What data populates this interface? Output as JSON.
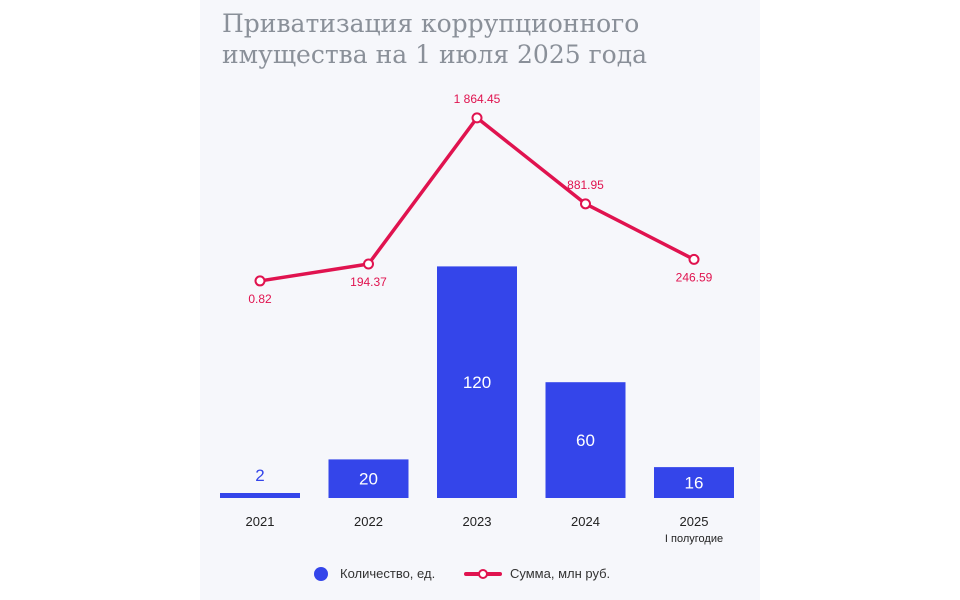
{
  "chart_data": {
    "type": "bar+line",
    "title": "Приватизация коррупционного\nимущества на 1 июля 2025 года",
    "categories": [
      "2021",
      "2022",
      "2023",
      "2024",
      "2025"
    ],
    "category_sublabels": [
      "",
      "",
      "",
      "",
      "I полугодие"
    ],
    "series": [
      {
        "name": "Количество, ед.",
        "type": "bar",
        "color": "#3445ea",
        "values": [
          2,
          20,
          120,
          60,
          16
        ],
        "labels": [
          "2",
          "20",
          "120",
          "60",
          "16"
        ]
      },
      {
        "name": "Сумма, млн руб.",
        "type": "line",
        "color": "#e0134f",
        "values": [
          0.82,
          194.37,
          1864.45,
          881.95,
          246.59
        ],
        "labels": [
          "0.82",
          "194.37",
          "1 864.45",
          "881.95",
          "246.59"
        ]
      }
    ],
    "grid": false,
    "legend": "bottom"
  }
}
